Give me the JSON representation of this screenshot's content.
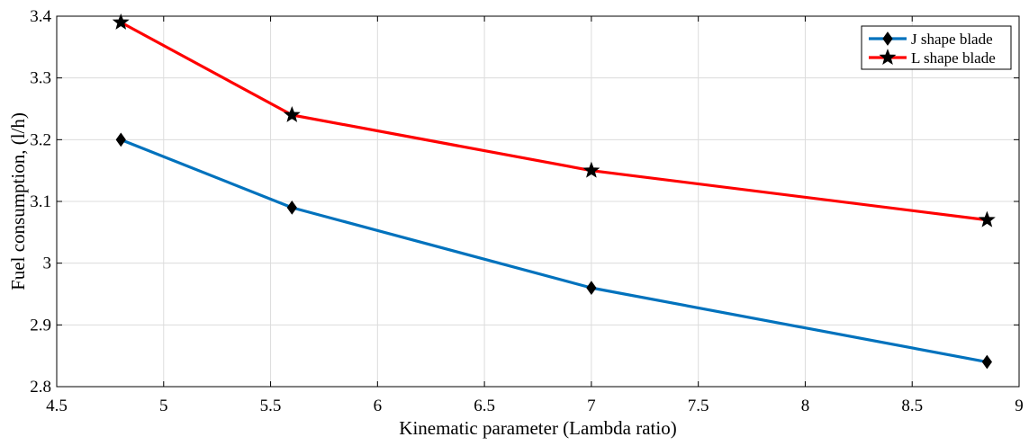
{
  "chart_data": {
    "type": "line",
    "xlabel": "Kinematic parameter (Lambda ratio)",
    "ylabel": "Fuel consumption, (l/h)",
    "xlim": [
      4.5,
      9
    ],
    "ylim": [
      2.8,
      3.4
    ],
    "xticks": [
      4.5,
      5,
      5.5,
      6,
      6.5,
      7,
      7.5,
      8,
      8.5,
      9
    ],
    "yticks": [
      2.8,
      2.9,
      3,
      3.1,
      3.2,
      3.3,
      3.4
    ],
    "xtick_labels": [
      "4.5",
      "5",
      "5.5",
      "6",
      "6.5",
      "7",
      "7.5",
      "8",
      "8.5",
      "9"
    ],
    "ytick_labels": [
      "2.8",
      "2.9",
      "3",
      "3.1",
      "3.2",
      "3.3",
      "3.4"
    ],
    "grid": true,
    "legend_position": "top-right",
    "series": [
      {
        "name": "J shape blade",
        "color": "#0072bd",
        "marker": "diamond",
        "x": [
          4.8,
          5.6,
          7.0,
          8.85
        ],
        "y": [
          3.2,
          3.09,
          2.96,
          2.84
        ]
      },
      {
        "name": "L shape blade",
        "color": "#ff0000",
        "marker": "star",
        "x": [
          4.8,
          5.6,
          7.0,
          8.85
        ],
        "y": [
          3.39,
          3.24,
          3.15,
          3.07
        ]
      }
    ]
  }
}
